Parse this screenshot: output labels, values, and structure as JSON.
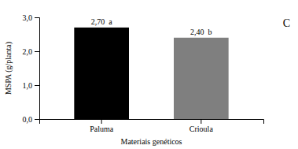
{
  "chart_data": {
    "type": "bar",
    "categories": [
      "Paluma",
      "Crioula"
    ],
    "values": [
      2.7,
      2.4
    ],
    "colors": [
      "#000000",
      "#7f7f7f"
    ],
    "data_labels": true,
    "value_labels": [
      "2,70  a",
      "2,40  b"
    ],
    "xlabel": "Materiais genéticos",
    "ylabel": "MSPA (g/planta)",
    "annotations": [
      "C"
    ],
    "ylim": [
      0.0,
      3.0
    ],
    "yticks": [
      {
        "value": 0.0,
        "label": "0,0"
      },
      {
        "value": 1.0,
        "label": "1,0"
      },
      {
        "value": 2.0,
        "label": "2,0"
      },
      {
        "value": 3.0,
        "label": "3,0"
      }
    ],
    "grid": false
  }
}
